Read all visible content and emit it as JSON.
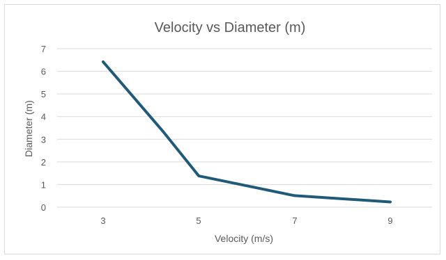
{
  "chart_data": {
    "type": "line",
    "title": "Velocity vs Diameter (m)",
    "xlabel": "Velocity (m/s)",
    "ylabel": "Diameter (m)",
    "categories": [
      "3",
      "5",
      "7",
      "9"
    ],
    "x": [
      3,
      4.25,
      5,
      7,
      9
    ],
    "series": [
      {
        "values": [
          6.42,
          3.35,
          1.38,
          0.51,
          0.23
        ],
        "color": "#1f5a7a"
      }
    ],
    "ylim": [
      0,
      7
    ],
    "yticks": [
      "0",
      "1",
      "2",
      "3",
      "4",
      "5",
      "6",
      "7"
    ],
    "grid": true,
    "legend": "none"
  }
}
